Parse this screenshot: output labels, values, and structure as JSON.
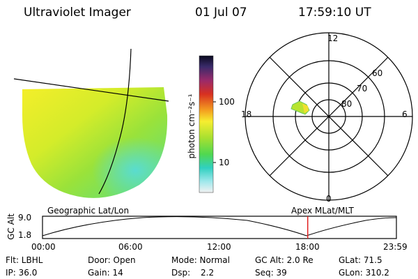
{
  "header": {
    "title": "Ultraviolet Imager",
    "date": "01 Jul 07",
    "time": "17:59:10 UT"
  },
  "colorbar": {
    "unit": "photon cm⁻²s⁻¹",
    "ticks": [
      "100",
      "10"
    ],
    "scale": "log"
  },
  "polar": {
    "mlt_labels": {
      "top": "12",
      "left": "18",
      "right": "6",
      "bottom": "0"
    },
    "lat_labels": [
      "60",
      "70",
      "80"
    ]
  },
  "lower": {
    "left_label": "Geographic Lat/Lon",
    "right_label": "Apex  MLat/MLT",
    "axis_label": "GC Alt",
    "alt_max": "9.0",
    "alt_min": "1.8",
    "time_ticks": [
      "00:00",
      "06:00",
      "12:00",
      "18:00",
      "23:59"
    ],
    "current_time_fraction": 0.7494
  },
  "info": {
    "flt": "Flt: LBHL",
    "ip": "IP: 36.0",
    "door": "Door: Open",
    "gain": "Gain: 14",
    "mode": "Mode: Normal",
    "dsp_label": "Dsp:",
    "dsp_value": "2.2",
    "gc_alt": "GC Alt: 2.0 Re",
    "seq": "Seq: 39",
    "glat": "GLat:  71.5",
    "glon": "GLon: 310.2"
  },
  "colors": {
    "marker": "#e02020"
  }
}
